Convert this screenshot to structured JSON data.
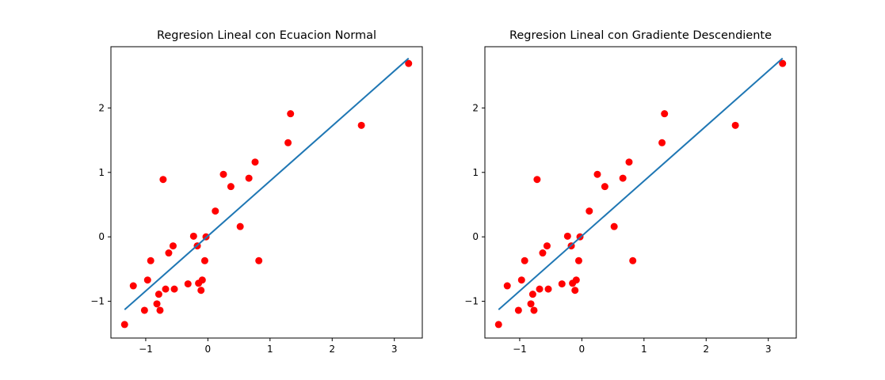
{
  "colors": {
    "points": "#ff0000",
    "line": "#1f77b4"
  },
  "chart_data": [
    {
      "type": "scatter",
      "title": "Regresion Lineal con Ecuacion Normal",
      "xlabel": "",
      "ylabel": "",
      "xlim": [
        -1.56,
        3.45
      ],
      "ylim": [
        -1.57,
        2.95
      ],
      "xticks": [
        -1,
        0,
        1,
        2,
        3
      ],
      "yticks": [
        -1,
        0,
        1,
        2
      ],
      "xtick_labels": [
        "−1",
        "0",
        "1",
        "2",
        "3"
      ],
      "ytick_labels": [
        "−1",
        "0",
        "1",
        "2"
      ],
      "grid": false,
      "points": {
        "x": [
          -1.34,
          -1.2,
          -1.02,
          -0.97,
          -0.92,
          -0.82,
          -0.79,
          -0.77,
          -0.72,
          -0.68,
          -0.63,
          -0.56,
          -0.54,
          -0.32,
          -0.23,
          -0.17,
          -0.15,
          -0.11,
          -0.09,
          -0.05,
          -0.03,
          0.12,
          0.25,
          0.37,
          0.52,
          0.66,
          0.76,
          0.82,
          1.29,
          1.33,
          2.47,
          3.23
        ],
        "y": [
          -1.36,
          -0.76,
          -1.14,
          -0.67,
          -0.37,
          -1.04,
          -0.89,
          -1.14,
          0.89,
          -0.81,
          -0.25,
          -0.14,
          -0.81,
          -0.73,
          0.01,
          -0.14,
          -0.72,
          -0.83,
          -0.67,
          -0.37,
          0.0,
          0.4,
          0.97,
          0.78,
          0.16,
          0.91,
          1.16,
          -0.37,
          1.46,
          1.91,
          1.73,
          2.69
        ]
      },
      "fit_line": {
        "x": [
          -1.34,
          3.23
        ],
        "y": [
          -1.13,
          2.77
        ]
      }
    },
    {
      "type": "scatter",
      "title": "Regresion Lineal con Gradiente Descendiente",
      "xlabel": "",
      "ylabel": "",
      "xlim": [
        -1.56,
        3.45
      ],
      "ylim": [
        -1.57,
        2.95
      ],
      "xticks": [
        -1,
        0,
        1,
        2,
        3
      ],
      "yticks": [
        -1,
        0,
        1,
        2
      ],
      "xtick_labels": [
        "−1",
        "0",
        "1",
        "2",
        "3"
      ],
      "ytick_labels": [
        "−1",
        "0",
        "1",
        "2"
      ],
      "grid": false,
      "points": {
        "x": [
          -1.34,
          -1.2,
          -1.02,
          -0.97,
          -0.92,
          -0.82,
          -0.79,
          -0.77,
          -0.72,
          -0.68,
          -0.63,
          -0.56,
          -0.54,
          -0.32,
          -0.23,
          -0.17,
          -0.15,
          -0.11,
          -0.09,
          -0.05,
          -0.03,
          0.12,
          0.25,
          0.37,
          0.52,
          0.66,
          0.76,
          0.82,
          1.29,
          1.33,
          2.47,
          3.23
        ],
        "y": [
          -1.36,
          -0.76,
          -1.14,
          -0.67,
          -0.37,
          -1.04,
          -0.89,
          -1.14,
          0.89,
          -0.81,
          -0.25,
          -0.14,
          -0.81,
          -0.73,
          0.01,
          -0.14,
          -0.72,
          -0.83,
          -0.67,
          -0.37,
          0.0,
          0.4,
          0.97,
          0.78,
          0.16,
          0.91,
          1.16,
          -0.37,
          1.46,
          1.91,
          1.73,
          2.69
        ]
      },
      "fit_line": {
        "x": [
          -1.34,
          3.23
        ],
        "y": [
          -1.13,
          2.77
        ]
      }
    }
  ]
}
